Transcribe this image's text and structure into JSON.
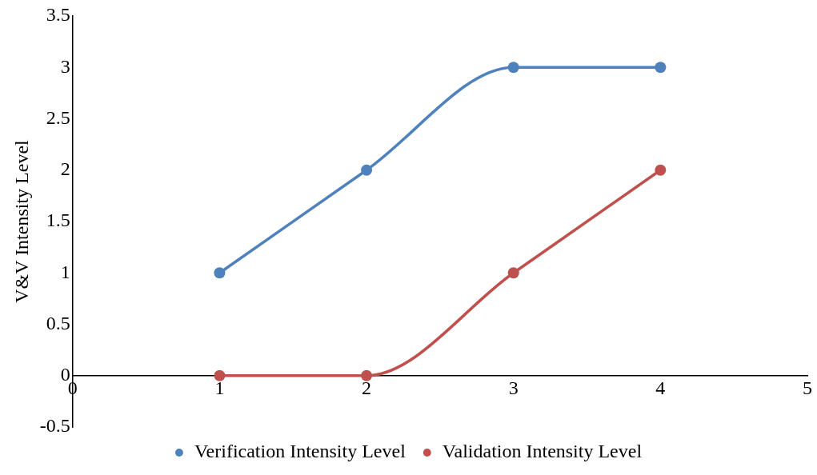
{
  "chart_data": {
    "type": "line",
    "ylabel": "V&V Intensity Level",
    "xlim": [
      0,
      5
    ],
    "xticks": [
      0,
      1,
      2,
      3,
      4,
      5
    ],
    "ylim": [
      -0.5,
      3.5
    ],
    "yticks": [
      -0.5,
      0,
      0.5,
      1,
      1.5,
      2,
      2.5,
      3,
      3.5
    ],
    "grid": false,
    "legend": "bottom",
    "marker": "circle",
    "line_style": "solid",
    "x": [
      1,
      2,
      3,
      4
    ],
    "series": [
      {
        "name": "Verification Intensity Level",
        "color": "#4f81bd",
        "values": [
          1,
          2,
          3,
          3
        ]
      },
      {
        "name": "Validation Intensity Level",
        "color": "#c0504d",
        "values": [
          0,
          0,
          1,
          2
        ]
      }
    ]
  }
}
